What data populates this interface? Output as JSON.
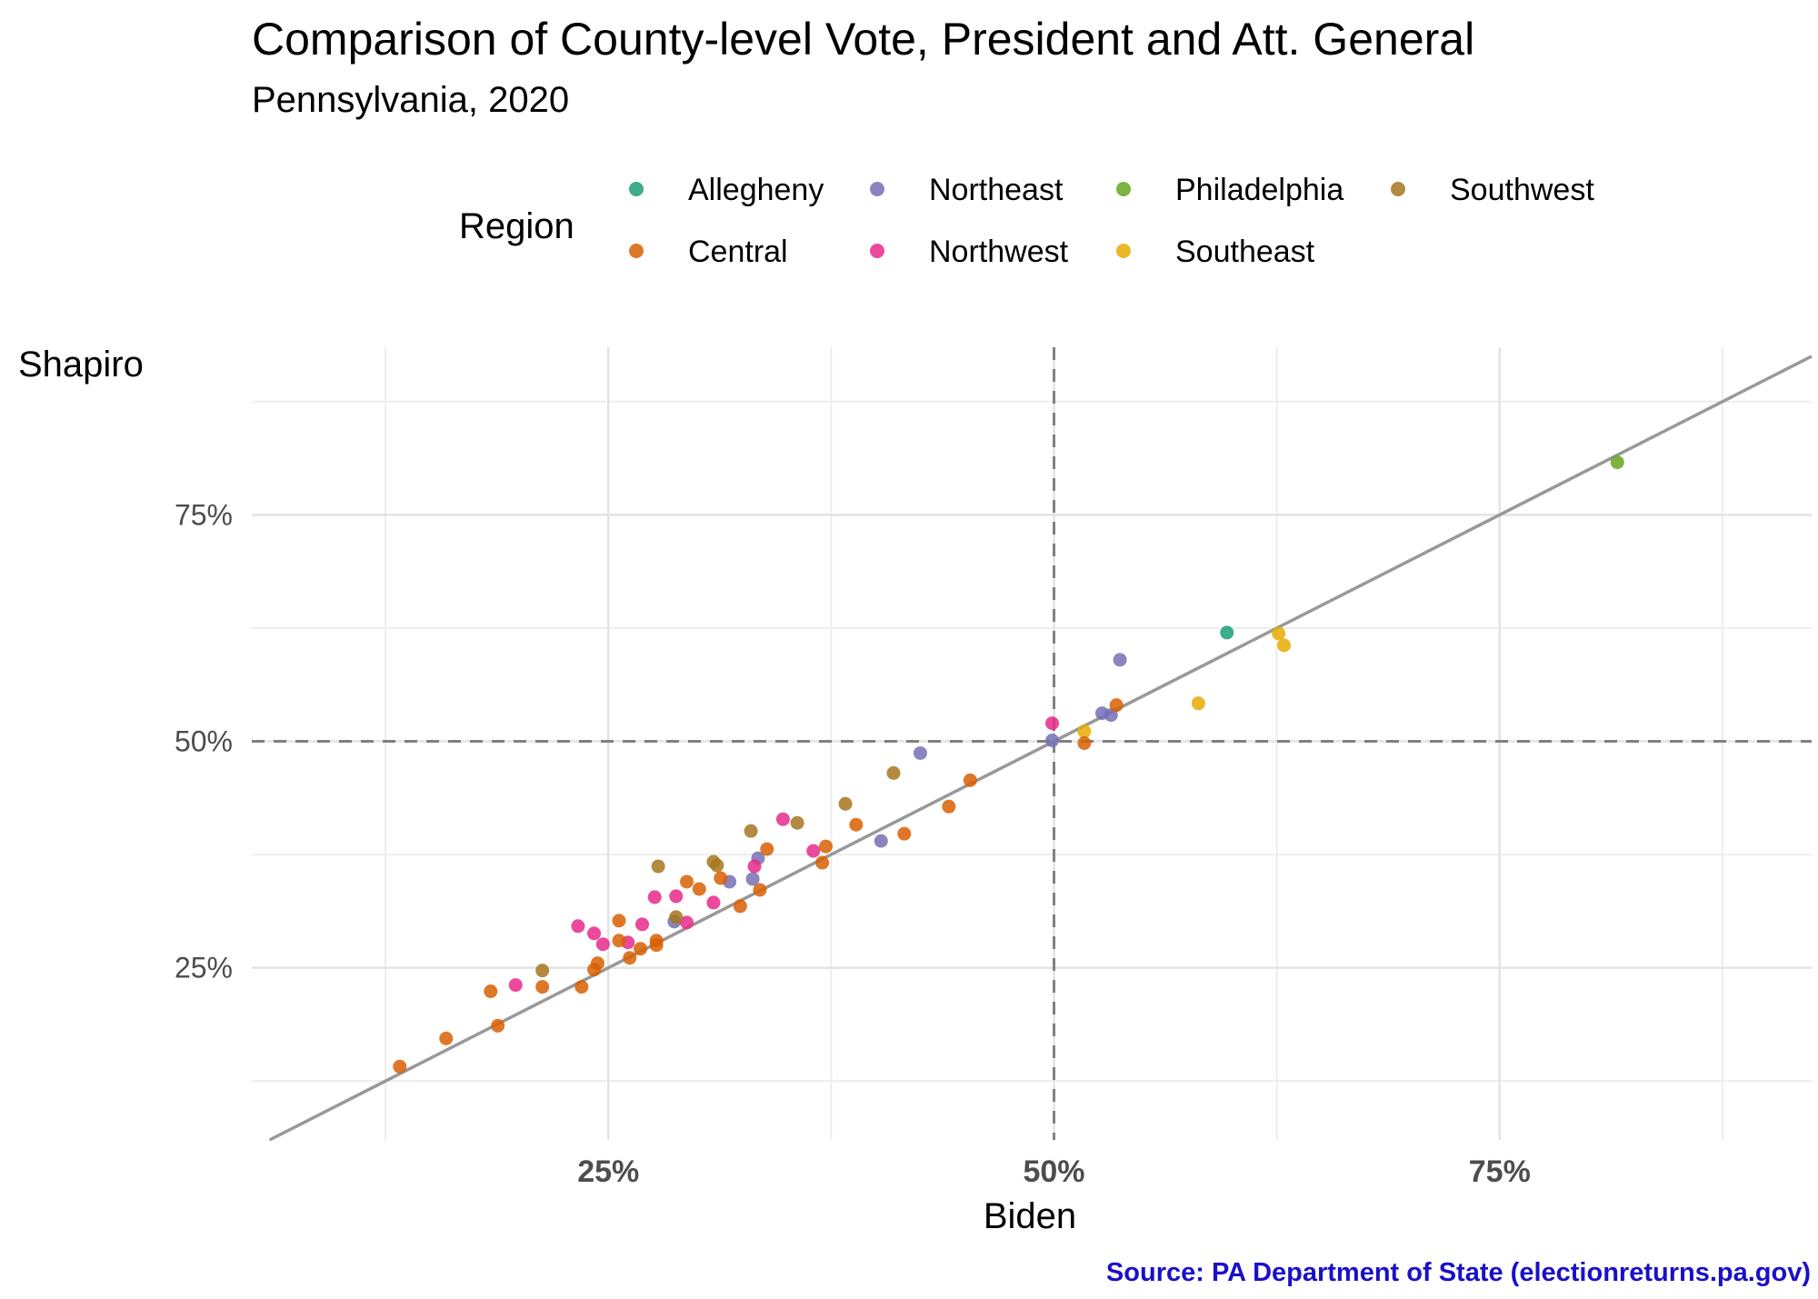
{
  "chart_data": {
    "type": "scatter",
    "title": "Comparison of County-level Vote, President and Att. General",
    "subtitle": "Pennsylvania, 2020",
    "xlabel": "Biden",
    "ylabel": "Shapiro",
    "caption": "Source: PA Department of State (electionreturns.pa.gov)",
    "xlim": [
      0.05,
      0.925
    ],
    "ylim": [
      0.06,
      0.935
    ],
    "x_ticks": [
      {
        "value": 0.25,
        "label": "25%"
      },
      {
        "value": 0.5,
        "label": "50%"
      },
      {
        "value": 0.75,
        "label": "75%"
      }
    ],
    "y_ticks": [
      {
        "value": 0.25,
        "label": "25%"
      },
      {
        "value": 0.5,
        "label": "50%"
      },
      {
        "value": 0.75,
        "label": "75%"
      }
    ],
    "x_minor": [
      0.125,
      0.375,
      0.625,
      0.875
    ],
    "y_minor": [
      0.125,
      0.375,
      0.625,
      0.875
    ],
    "grid": true,
    "reference_lines": {
      "identity": true,
      "vline": 0.5,
      "hline": 0.5
    },
    "legend": {
      "title": "Region",
      "placement": "top",
      "entries": [
        {
          "name": "Allegheny",
          "color": "#1b9e77"
        },
        {
          "name": "Central",
          "color": "#d95f02"
        },
        {
          "name": "Northeast",
          "color": "#7570b3"
        },
        {
          "name": "Northwest",
          "color": "#e7298a"
        },
        {
          "name": "Philadelphia",
          "color": "#66a61e"
        },
        {
          "name": "Southeast",
          "color": "#e6ab02"
        },
        {
          "name": "Southwest",
          "color": "#a6761d"
        }
      ]
    },
    "series": [
      {
        "name": "Allegheny",
        "color": "#1b9e77",
        "points": [
          [
            0.597,
            0.62
          ]
        ]
      },
      {
        "name": "Philadelphia",
        "color": "#66a61e",
        "points": [
          [
            0.816,
            0.808
          ]
        ]
      },
      {
        "name": "Southeast",
        "color": "#e6ab02",
        "points": [
          [
            0.517,
            0.511
          ],
          [
            0.581,
            0.542
          ],
          [
            0.626,
            0.619
          ],
          [
            0.629,
            0.606
          ]
        ]
      },
      {
        "name": "Northeast",
        "color": "#7570b3",
        "points": [
          [
            0.499,
            0.501
          ],
          [
            0.527,
            0.531
          ],
          [
            0.532,
            0.529
          ],
          [
            0.537,
            0.59
          ],
          [
            0.425,
            0.487
          ],
          [
            0.403,
            0.39
          ],
          [
            0.334,
            0.371
          ],
          [
            0.331,
            0.348
          ],
          [
            0.318,
            0.345
          ],
          [
            0.287,
            0.301
          ]
        ]
      },
      {
        "name": "Northwest",
        "color": "#e7298a",
        "points": [
          [
            0.499,
            0.52
          ],
          [
            0.348,
            0.414
          ],
          [
            0.365,
            0.379
          ],
          [
            0.332,
            0.362
          ],
          [
            0.276,
            0.328
          ],
          [
            0.288,
            0.329
          ],
          [
            0.309,
            0.322
          ],
          [
            0.294,
            0.3
          ],
          [
            0.269,
            0.298
          ],
          [
            0.233,
            0.296
          ],
          [
            0.242,
            0.288
          ],
          [
            0.247,
            0.276
          ],
          [
            0.261,
            0.278
          ],
          [
            0.198,
            0.231
          ]
        ]
      },
      {
        "name": "Southwest",
        "color": "#a6761d",
        "points": [
          [
            0.41,
            0.465
          ],
          [
            0.383,
            0.431
          ],
          [
            0.356,
            0.41
          ],
          [
            0.33,
            0.401
          ],
          [
            0.278,
            0.362
          ],
          [
            0.309,
            0.367
          ],
          [
            0.311,
            0.363
          ],
          [
            0.288,
            0.306
          ],
          [
            0.213,
            0.247
          ]
        ]
      },
      {
        "name": "Central",
        "color": "#d95f02",
        "points": [
          [
            0.517,
            0.498
          ],
          [
            0.535,
            0.54
          ],
          [
            0.453,
            0.457
          ],
          [
            0.441,
            0.428
          ],
          [
            0.416,
            0.398
          ],
          [
            0.389,
            0.408
          ],
          [
            0.372,
            0.384
          ],
          [
            0.37,
            0.366
          ],
          [
            0.339,
            0.381
          ],
          [
            0.335,
            0.336
          ],
          [
            0.313,
            0.349
          ],
          [
            0.301,
            0.337
          ],
          [
            0.294,
            0.345
          ],
          [
            0.324,
            0.318
          ],
          [
            0.256,
            0.302
          ],
          [
            0.256,
            0.28
          ],
          [
            0.277,
            0.28
          ],
          [
            0.277,
            0.275
          ],
          [
            0.268,
            0.271
          ],
          [
            0.262,
            0.261
          ],
          [
            0.244,
            0.255
          ],
          [
            0.242,
            0.248
          ],
          [
            0.235,
            0.229
          ],
          [
            0.213,
            0.229
          ],
          [
            0.184,
            0.224
          ],
          [
            0.188,
            0.186
          ],
          [
            0.159,
            0.172
          ],
          [
            0.133,
            0.141
          ]
        ]
      }
    ]
  }
}
